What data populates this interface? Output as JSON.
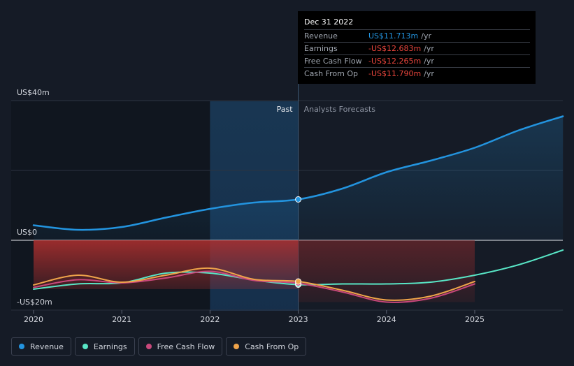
{
  "chart_data": {
    "type": "line",
    "title": "",
    "xlabel": "",
    "ylabel": "",
    "x_ticks": [
      "2020",
      "2021",
      "2022",
      "2023",
      "2024",
      "2025"
    ],
    "x_range": [
      2020,
      2026
    ],
    "y_ticks": [
      {
        "value": 40,
        "label": "US$40m"
      },
      {
        "value": 0,
        "label": "US$0"
      },
      {
        "value": -20,
        "label": "-US$20m"
      }
    ],
    "ylim": [
      -20,
      40
    ],
    "past_label": "Past",
    "forecast_label": "Analysts Forecasts",
    "highlight_start": 2022,
    "divider_x": 2023,
    "series": [
      {
        "name": "Revenue",
        "color": "#2394df",
        "points": [
          [
            2020,
            4.3
          ],
          [
            2020.5,
            3.0
          ],
          [
            2021,
            3.8
          ],
          [
            2021.5,
            6.5
          ],
          [
            2022,
            9.0
          ],
          [
            2022.5,
            10.8
          ],
          [
            2023,
            11.7
          ],
          [
            2023.5,
            14.8
          ],
          [
            2024,
            19.5
          ],
          [
            2024.5,
            22.8
          ],
          [
            2025,
            26.5
          ],
          [
            2025.5,
            31.5
          ],
          [
            2026,
            35.5
          ]
        ],
        "marker_x": 2023
      },
      {
        "name": "Earnings",
        "color": "#58e6c6",
        "points": [
          [
            2020,
            -14.0
          ],
          [
            2020.5,
            -12.5
          ],
          [
            2021,
            -12.2
          ],
          [
            2021.5,
            -9.4
          ],
          [
            2022,
            -9.4
          ],
          [
            2022.5,
            -11.4
          ],
          [
            2023,
            -12.7
          ],
          [
            2023.5,
            -12.5
          ],
          [
            2024,
            -12.5
          ],
          [
            2024.5,
            -12.0
          ],
          [
            2025,
            -10.0
          ],
          [
            2025.5,
            -7.0
          ],
          [
            2026,
            -2.8
          ]
        ],
        "marker_x": 2023
      },
      {
        "name": "Free Cash Flow",
        "color": "#c9487b",
        "points": [
          [
            2020,
            -13.5
          ],
          [
            2020.5,
            -11.3
          ],
          [
            2021,
            -12.2
          ],
          [
            2021.5,
            -10.8
          ],
          [
            2022,
            -8.9
          ],
          [
            2022.5,
            -11.5
          ],
          [
            2023,
            -12.3
          ],
          [
            2023.5,
            -14.8
          ],
          [
            2024,
            -17.7
          ],
          [
            2024.5,
            -16.6
          ],
          [
            2025,
            -12.5
          ]
        ],
        "marker_x": 2023
      },
      {
        "name": "Cash From Op",
        "color": "#f0a44a",
        "points": [
          [
            2020,
            -12.8
          ],
          [
            2020.5,
            -10.0
          ],
          [
            2021,
            -12.0
          ],
          [
            2021.5,
            -10.0
          ],
          [
            2022,
            -8.0
          ],
          [
            2022.5,
            -11.2
          ],
          [
            2023,
            -11.8
          ],
          [
            2023.5,
            -14.3
          ],
          [
            2024,
            -17.1
          ],
          [
            2024.5,
            -16.0
          ],
          [
            2025,
            -11.8
          ]
        ],
        "marker_x": 2023
      }
    ]
  },
  "tooltip": {
    "date": "Dec 31 2022",
    "rows": [
      {
        "label": "Revenue",
        "value": "US$11.713m",
        "unit": "/yr",
        "color": "#2394df"
      },
      {
        "label": "Earnings",
        "value": "-US$12.683m",
        "unit": "/yr",
        "color": "#e8453c"
      },
      {
        "label": "Free Cash Flow",
        "value": "-US$12.265m",
        "unit": "/yr",
        "color": "#e8453c"
      },
      {
        "label": "Cash From Op",
        "value": "-US$11.790m",
        "unit": "/yr",
        "color": "#e8453c"
      }
    ]
  },
  "legend": [
    {
      "label": "Revenue",
      "color": "#2394df"
    },
    {
      "label": "Earnings",
      "color": "#58e6c6"
    },
    {
      "label": "Free Cash Flow",
      "color": "#c9487b"
    },
    {
      "label": "Cash From Op",
      "color": "#f0a44a"
    }
  ]
}
